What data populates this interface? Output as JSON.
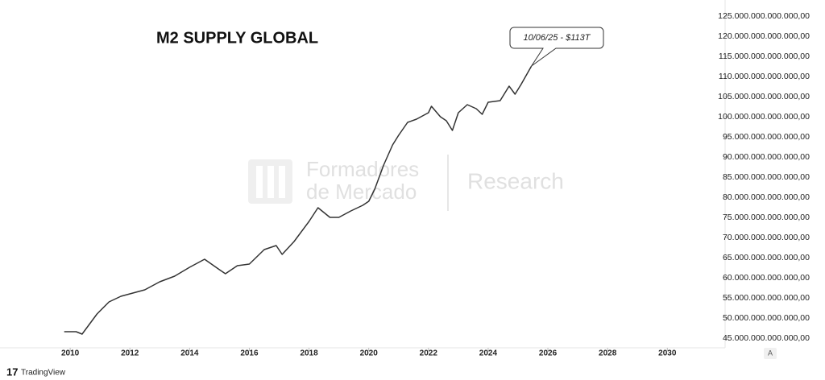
{
  "chart_data": {
    "type": "line",
    "title": "M2 SUPPLY GLOBAL",
    "annotation": "10/06/25 - $113T",
    "watermark": [
      "Formadores",
      "de Mercado",
      "Research"
    ],
    "footer": "TradingView",
    "scale_button": "A",
    "color": "#333333",
    "x": [
      2009.8,
      2010.2,
      2010.4,
      2010.6,
      2010.9,
      2011.3,
      2011.7,
      2012,
      2012.5,
      2013,
      2013.5,
      2014,
      2014.5,
      2015,
      2015.2,
      2015.6,
      2016,
      2016.5,
      2016.9,
      2017.1,
      2017.5,
      2018,
      2018.3,
      2018.7,
      2019,
      2019.4,
      2019.8,
      2020,
      2020.2,
      2020.5,
      2020.8,
      2021,
      2021.3,
      2021.6,
      2022,
      2022.1,
      2022.4,
      2022.6,
      2022.8,
      2023,
      2023.3,
      2023.6,
      2023.8,
      2024,
      2024.4,
      2024.7,
      2024.9,
      2025.1,
      2025.45
    ],
    "values": [
      46600000000000,
      46600000000000,
      46000000000000,
      48000000000000,
      51000000000000,
      54000000000000,
      55400000000000,
      56000000000000,
      57000000000000,
      59000000000000,
      60400000000000,
      62600000000000,
      64600000000000,
      62000000000000,
      61000000000000,
      63000000000000,
      63400000000000,
      67000000000000,
      68000000000000,
      65800000000000,
      69000000000000,
      74000000000000,
      77400000000000,
      75000000000000,
      75000000000000,
      76600000000000,
      78000000000000,
      79000000000000,
      82000000000000,
      88000000000000,
      93000000000000,
      95400000000000,
      98600000000000,
      99400000000000,
      101000000000000,
      102600000000000,
      100000000000000,
      99000000000000,
      96600000000000,
      101000000000000,
      103000000000000,
      102000000000000,
      100600000000000,
      103600000000000,
      104000000000000,
      107600000000000,
      105600000000000,
      108000000000000,
      112600000000000
    ],
    "xlim": [
      2007.65,
      2031.8
    ],
    "xticks": [
      2010,
      2012,
      2014,
      2016,
      2018,
      2020,
      2022,
      2024,
      2026,
      2028,
      2030
    ],
    "ylim": [
      42600000000000,
      129000000000000
    ],
    "yticks": [
      {
        "value": 45000000000000,
        "label": "45.000.000.000.000,00"
      },
      {
        "value": 50000000000000,
        "label": "50.000.000.000.000,00"
      },
      {
        "value": 55000000000000,
        "label": "55.000.000.000.000,00"
      },
      {
        "value": 60000000000000,
        "label": "60.000.000.000.000,00"
      },
      {
        "value": 65000000000000,
        "label": "65.000.000.000.000,00"
      },
      {
        "value": 70000000000000,
        "label": "70.000.000.000.000,00"
      },
      {
        "value": 75000000000000,
        "label": "75.000.000.000.000,00"
      },
      {
        "value": 80000000000000,
        "label": "80.000.000.000.000,00"
      },
      {
        "value": 85000000000000,
        "label": "85.000.000.000.000,00"
      },
      {
        "value": 90000000000000,
        "label": "90.000.000.000.000,00"
      },
      {
        "value": 95000000000000,
        "label": "95.000.000.000.000,00"
      },
      {
        "value": 100000000000000,
        "label": "100.000.000.000.000,00"
      },
      {
        "value": 105000000000000,
        "label": "105.000.000.000.000,00"
      },
      {
        "value": 110000000000000,
        "label": "110.000.000.000.000,00"
      },
      {
        "value": 115000000000000,
        "label": "115.000.000.000.000,00"
      },
      {
        "value": 120000000000000,
        "label": "120.000.000.000.000,00"
      },
      {
        "value": 125000000000000,
        "label": "125.000.000.000.000,00"
      }
    ]
  }
}
